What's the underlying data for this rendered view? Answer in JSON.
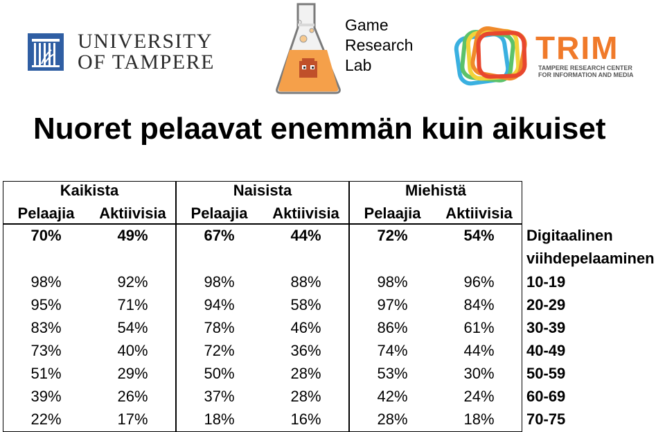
{
  "header": {
    "university": {
      "line1": "UNIVERSITY",
      "line2": "OF TAMPERE"
    },
    "lab": {
      "line1": "Game",
      "line2": "Research",
      "line3": "Lab"
    },
    "trim": {
      "word": "TRIM",
      "sub1": "TAMPERE RESEARCH CENTER",
      "sub2": "FOR INFORMATION AND MEDIA"
    }
  },
  "title": "Nuoret pelaavat enemmän kuin aikuiset",
  "table": {
    "groups": [
      "Kaikista",
      "Naisista",
      "Miehistä"
    ],
    "subheaders": [
      "Pelaajia",
      "Aktiivisia",
      "Pelaajia",
      "Aktiivisia",
      "Pelaajia",
      "Aktiivisia"
    ],
    "total_row": {
      "values": [
        "70%",
        "49%",
        "67%",
        "44%",
        "72%",
        "54%"
      ],
      "label_line1": "Digitaalinen",
      "label_line2": "viihdepelaaminen"
    },
    "rows": [
      {
        "label": "10-19",
        "values": [
          "98%",
          "92%",
          "98%",
          "88%",
          "98%",
          "96%"
        ]
      },
      {
        "label": "20-29",
        "values": [
          "95%",
          "71%",
          "94%",
          "58%",
          "97%",
          "84%"
        ]
      },
      {
        "label": "30-39",
        "values": [
          "83%",
          "54%",
          "78%",
          "46%",
          "86%",
          "61%"
        ]
      },
      {
        "label": "40-49",
        "values": [
          "73%",
          "40%",
          "72%",
          "36%",
          "74%",
          "44%"
        ]
      },
      {
        "label": "50-59",
        "values": [
          "51%",
          "29%",
          "50%",
          "28%",
          "53%",
          "30%"
        ]
      },
      {
        "label": "60-69",
        "values": [
          "39%",
          "26%",
          "37%",
          "28%",
          "42%",
          "24%"
        ]
      },
      {
        "label": "70-75",
        "values": [
          "22%",
          "17%",
          "18%",
          "16%",
          "28%",
          "18%"
        ]
      }
    ]
  },
  "colors": {
    "uta_blue": "#2f5ea3",
    "trim_orange": "#f07a2a",
    "flask_orange": "#f5a04a"
  },
  "icons": {
    "uta": "university-emblem-icon",
    "lab": "flask-icon",
    "trim": "trim-rings-icon"
  }
}
